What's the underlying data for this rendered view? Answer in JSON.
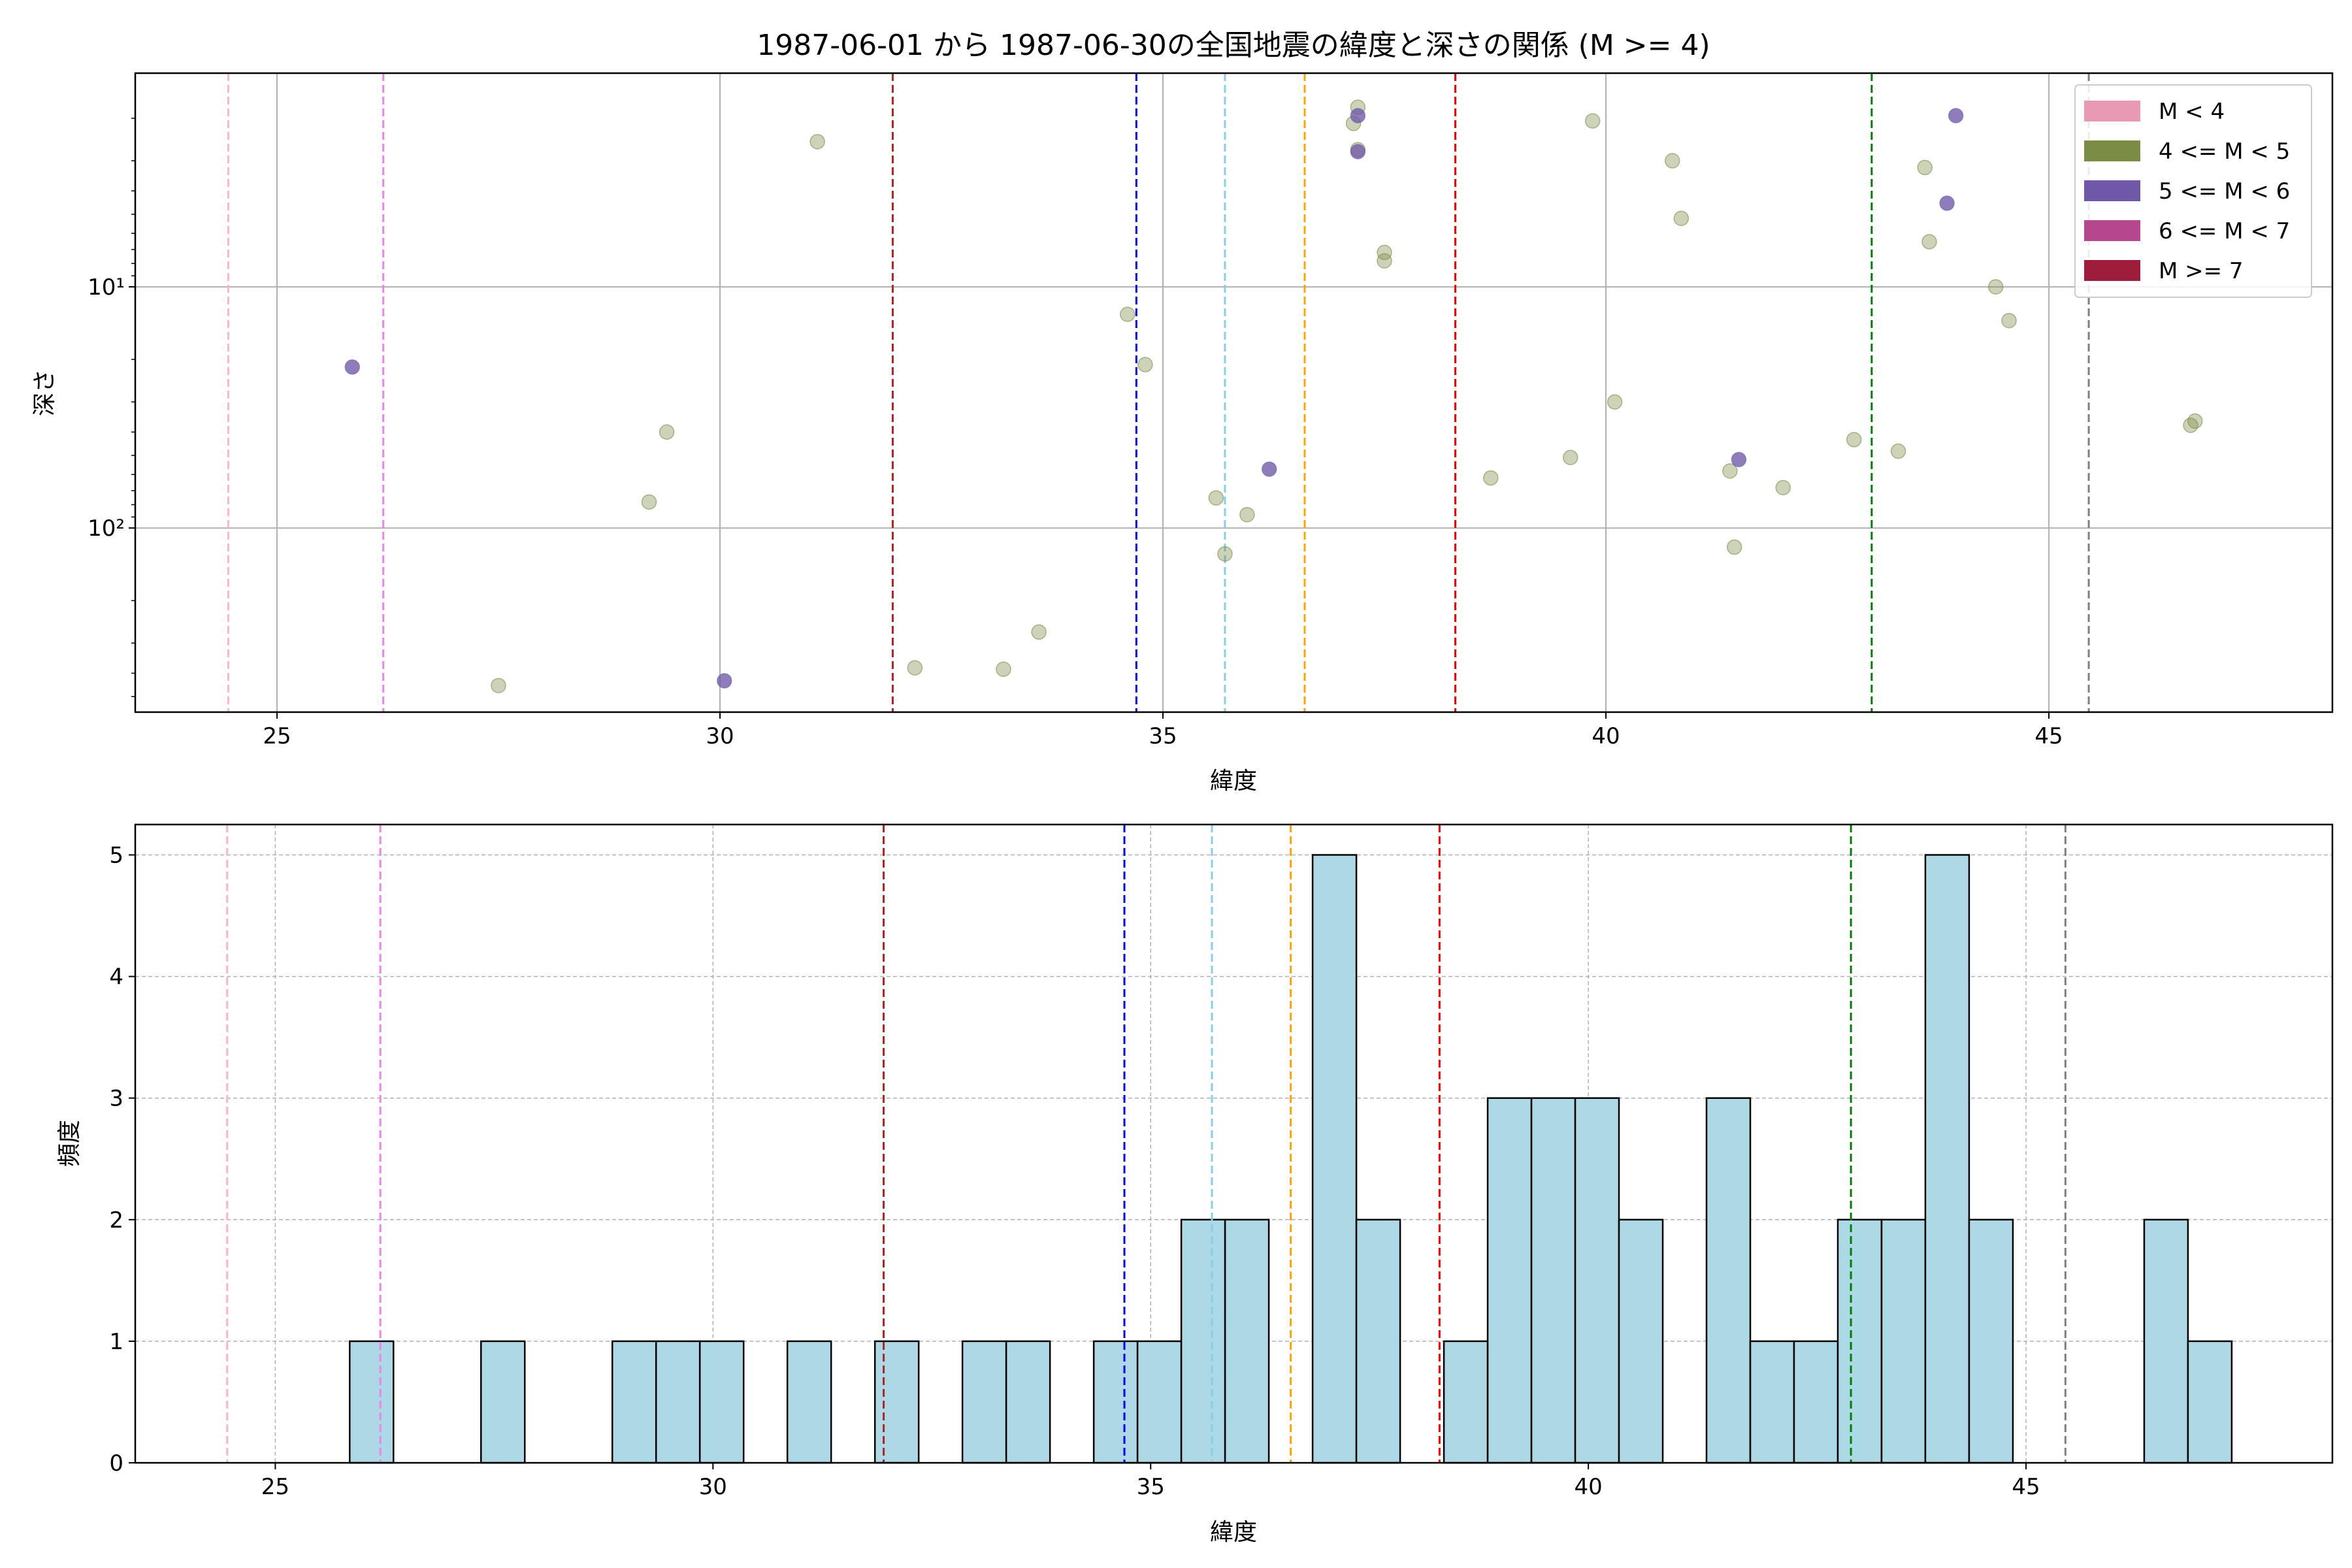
{
  "chart_data": [
    {
      "type": "scatter",
      "title": "1987-06-01 から 1987-06-30の全国地震の緯度と深さの関係 (M >= 4)",
      "xlabel": "緯度",
      "ylabel": "深さ",
      "xlim": [
        23.4,
        48.2
      ],
      "ylim": [
        580,
        1.3
      ],
      "yscale": "log",
      "y_inverted": true,
      "xticks": [
        25,
        30,
        35,
        40,
        45
      ],
      "yticks": [
        {
          "value": 10,
          "label": "10¹"
        },
        {
          "value": 100,
          "label": "10²"
        }
      ],
      "grid": true,
      "legend": {
        "placement": "top-right",
        "entries": [
          {
            "label": "M < 4",
            "color": "#e89ab5"
          },
          {
            "label": "4 <= M < 5",
            "color": "#7b8c45"
          },
          {
            "label": "5 <= M < 6",
            "color": "#7058a8"
          },
          {
            "label": "6 <= M < 7",
            "color": "#b5478f"
          },
          {
            "label": "M >= 7",
            "color": "#9e1c3c"
          }
        ]
      },
      "vlines": [
        {
          "x": 24.45,
          "color": "#ffb6c1"
        },
        {
          "x": 26.2,
          "color": "#ee82ee"
        },
        {
          "x": 31.95,
          "color": "#b22222"
        },
        {
          "x": 34.7,
          "color": "#0000ff"
        },
        {
          "x": 35.7,
          "color": "#87ceeb"
        },
        {
          "x": 36.6,
          "color": "#ffa500"
        },
        {
          "x": 38.3,
          "color": "#ff0000"
        },
        {
          "x": 43.0,
          "color": "#008000"
        },
        {
          "x": 45.45,
          "color": "#808080"
        }
      ],
      "series": [
        {
          "name": "4 <= M < 5",
          "color": "#7b8c45",
          "points": [
            {
              "x": 27.5,
              "y": 450
            },
            {
              "x": 29.2,
              "y": 78
            },
            {
              "x": 29.4,
              "y": 40
            },
            {
              "x": 31.1,
              "y": 2.5
            },
            {
              "x": 32.2,
              "y": 380
            },
            {
              "x": 33.2,
              "y": 385
            },
            {
              "x": 33.6,
              "y": 270
            },
            {
              "x": 34.6,
              "y": 13
            },
            {
              "x": 34.8,
              "y": 21
            },
            {
              "x": 35.6,
              "y": 75
            },
            {
              "x": 35.7,
              "y": 128
            },
            {
              "x": 35.95,
              "y": 88
            },
            {
              "x": 37.15,
              "y": 2.1
            },
            {
              "x": 37.2,
              "y": 1.8
            },
            {
              "x": 37.2,
              "y": 2.7
            },
            {
              "x": 37.5,
              "y": 7.2
            },
            {
              "x": 37.5,
              "y": 7.8
            },
            {
              "x": 38.7,
              "y": 62
            },
            {
              "x": 39.6,
              "y": 51
            },
            {
              "x": 39.85,
              "y": 2.05
            },
            {
              "x": 40.1,
              "y": 30
            },
            {
              "x": 40.75,
              "y": 3.0
            },
            {
              "x": 40.85,
              "y": 5.2
            },
            {
              "x": 41.4,
              "y": 58
            },
            {
              "x": 41.45,
              "y": 120
            },
            {
              "x": 42.0,
              "y": 68
            },
            {
              "x": 42.8,
              "y": 43
            },
            {
              "x": 43.3,
              "y": 48
            },
            {
              "x": 43.6,
              "y": 3.2
            },
            {
              "x": 43.65,
              "y": 6.5
            },
            {
              "x": 44.4,
              "y": 10
            },
            {
              "x": 44.55,
              "y": 13.8
            },
            {
              "x": 46.6,
              "y": 37.5
            },
            {
              "x": 46.65,
              "y": 36
            }
          ]
        },
        {
          "name": "5 <= M < 6",
          "color": "#7058a8",
          "points": [
            {
              "x": 25.85,
              "y": 21.5
            },
            {
              "x": 30.05,
              "y": 430
            },
            {
              "x": 36.2,
              "y": 57
            },
            {
              "x": 37.2,
              "y": 1.95
            },
            {
              "x": 37.2,
              "y": 2.75
            },
            {
              "x": 41.5,
              "y": 52
            },
            {
              "x": 43.85,
              "y": 4.5
            },
            {
              "x": 43.95,
              "y": 1.95
            }
          ]
        }
      ]
    },
    {
      "type": "bar",
      "title": "",
      "xlabel": "緯度",
      "ylabel": "頻度",
      "xlim": [
        23.4,
        48.5
      ],
      "ylim": [
        0,
        5.25
      ],
      "xticks": [
        25,
        30,
        35,
        40,
        45
      ],
      "yticks": [
        0,
        1,
        2,
        3,
        4,
        5
      ],
      "grid": true,
      "bar_color": "#add8e6",
      "bin_width": 0.5,
      "bins": [
        {
          "x0": 25.85,
          "count": 1
        },
        {
          "x0": 27.35,
          "count": 1
        },
        {
          "x0": 28.85,
          "count": 1
        },
        {
          "x0": 29.35,
          "count": 1
        },
        {
          "x0": 29.85,
          "count": 1
        },
        {
          "x0": 30.85,
          "count": 1
        },
        {
          "x0": 31.85,
          "count": 1
        },
        {
          "x0": 32.85,
          "count": 1
        },
        {
          "x0": 33.35,
          "count": 1
        },
        {
          "x0": 34.35,
          "count": 1
        },
        {
          "x0": 34.85,
          "count": 1
        },
        {
          "x0": 35.35,
          "count": 2
        },
        {
          "x0": 35.85,
          "count": 2
        },
        {
          "x0": 36.85,
          "count": 5
        },
        {
          "x0": 37.35,
          "count": 2
        },
        {
          "x0": 38.35,
          "count": 1
        },
        {
          "x0": 38.85,
          "count": 3
        },
        {
          "x0": 39.35,
          "count": 3
        },
        {
          "x0": 39.85,
          "count": 3
        },
        {
          "x0": 40.35,
          "count": 2
        },
        {
          "x0": 41.35,
          "count": 3
        },
        {
          "x0": 41.85,
          "count": 1
        },
        {
          "x0": 42.35,
          "count": 1
        },
        {
          "x0": 42.85,
          "count": 2
        },
        {
          "x0": 43.35,
          "count": 2
        },
        {
          "x0": 43.85,
          "count": 5
        },
        {
          "x0": 44.35,
          "count": 2
        },
        {
          "x0": 46.35,
          "count": 2
        },
        {
          "x0": 46.85,
          "count": 1
        }
      ],
      "vlines": [
        {
          "x": 24.45,
          "color": "#ffb6c1"
        },
        {
          "x": 26.2,
          "color": "#ee82ee"
        },
        {
          "x": 31.95,
          "color": "#b22222"
        },
        {
          "x": 34.7,
          "color": "#0000ff"
        },
        {
          "x": 35.7,
          "color": "#87ceeb"
        },
        {
          "x": 36.6,
          "color": "#ffa500"
        },
        {
          "x": 38.3,
          "color": "#ff0000"
        },
        {
          "x": 43.0,
          "color": "#008000"
        },
        {
          "x": 45.45,
          "color": "#808080"
        }
      ]
    }
  ]
}
